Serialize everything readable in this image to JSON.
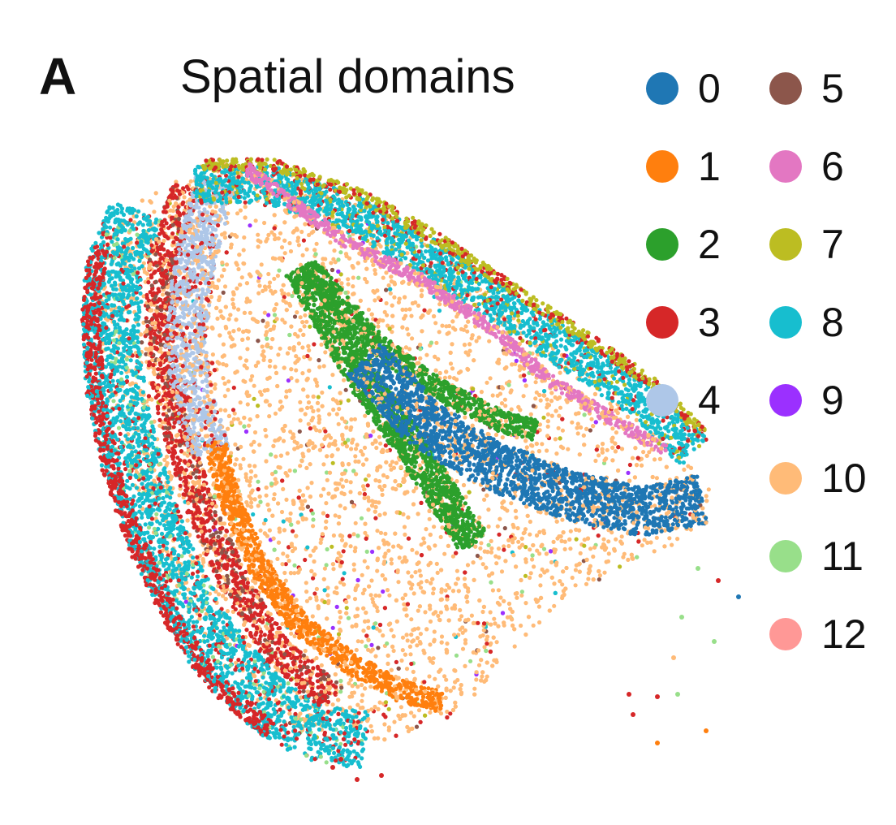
{
  "panel_label": "A",
  "chart_data": {
    "type": "scatter",
    "title": "Spatial domains",
    "xlabel": "",
    "ylabel": "",
    "grid": false,
    "axes_visible": false,
    "legend_placement": "right",
    "legend": [
      {
        "label": "0",
        "color": "#1f77b4"
      },
      {
        "label": "1",
        "color": "#ff7f0e"
      },
      {
        "label": "2",
        "color": "#2ca02c"
      },
      {
        "label": "3",
        "color": "#d62728"
      },
      {
        "label": "4",
        "color": "#aec7e8"
      },
      {
        "label": "5",
        "color": "#8c564b"
      },
      {
        "label": "6",
        "color": "#e377c2"
      },
      {
        "label": "7",
        "color": "#bcbd22"
      },
      {
        "label": "8",
        "color": "#17becf"
      },
      {
        "label": "9",
        "color": "#9b30ff"
      },
      {
        "label": "10",
        "color": "#ffbb78"
      },
      {
        "label": "11",
        "color": "#98df8a"
      },
      {
        "label": "12",
        "color": "#ff9896"
      }
    ]
  }
}
